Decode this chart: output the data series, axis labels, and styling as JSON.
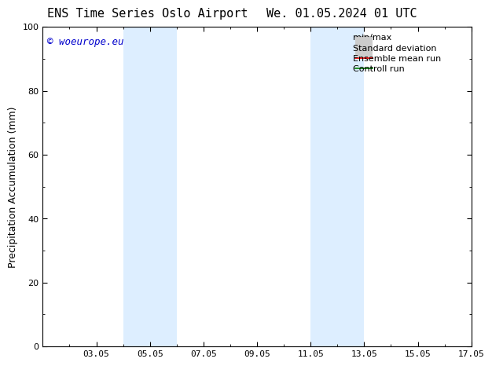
{
  "title_left": "ENS Time Series Oslo Airport",
  "title_right": "We. 01.05.2024 01 UTC",
  "ylabel": "Precipitation Accumulation (mm)",
  "watermark": "© woeurope.eu",
  "watermark_color": "#0000cc",
  "xlim": [
    1.05,
    17.05
  ],
  "ylim": [
    0,
    100
  ],
  "yticks": [
    0,
    20,
    40,
    60,
    80,
    100
  ],
  "xticks": [
    3.05,
    5.05,
    7.05,
    9.05,
    11.05,
    13.05,
    15.05,
    17.05
  ],
  "xtick_labels": [
    "03.05",
    "05.05",
    "07.05",
    "09.05",
    "11.05",
    "13.05",
    "15.05",
    "17.05"
  ],
  "shaded_bands": [
    {
      "xmin": 4.05,
      "xmax": 6.05
    },
    {
      "xmin": 11.05,
      "xmax": 13.05
    }
  ],
  "shade_color": "#ddeeff",
  "background_color": "#ffffff",
  "legend_entries": [
    {
      "label": "min/max",
      "color": "#aaaaaa",
      "lw": 1.2,
      "style": "line_with_caps"
    },
    {
      "label": "Standard deviation",
      "color": "#cccccc",
      "lw": 5,
      "style": "thick_line"
    },
    {
      "label": "Ensemble mean run",
      "color": "#ff0000",
      "lw": 1.2,
      "style": "line"
    },
    {
      "label": "Controll run",
      "color": "#008000",
      "lw": 1.2,
      "style": "line"
    }
  ],
  "title_fontsize": 11,
  "tick_fontsize": 8,
  "label_fontsize": 9,
  "watermark_fontsize": 9,
  "legend_fontsize": 8
}
